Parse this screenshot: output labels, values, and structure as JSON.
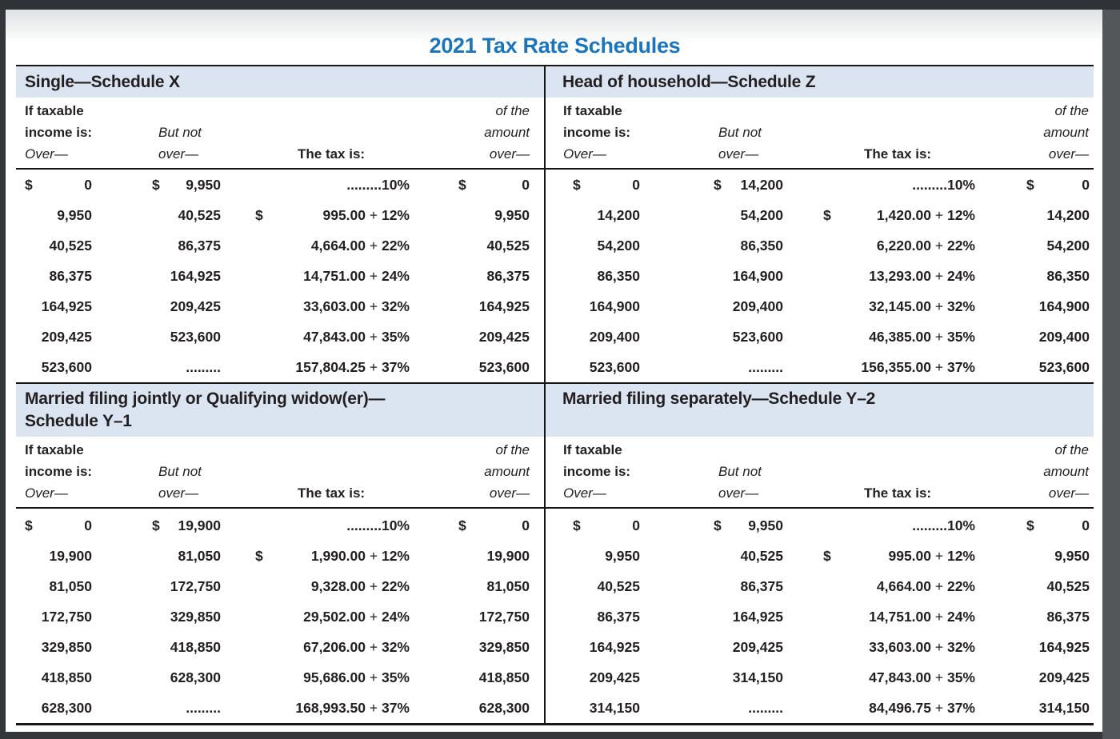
{
  "title": "2021 Tax Rate Schedules",
  "colors": {
    "accent_blue": "#1b75bc",
    "band_blue": "#dbe5f2"
  },
  "col_headers": {
    "if_taxable": "If taxable",
    "income_is": "income is:",
    "over_dash": "Over—",
    "but_not": "But not",
    "over_dash2": "over—",
    "the_tax_is": "The tax is:",
    "of_the": "of the",
    "amount": "amount",
    "over_dash3": "over—"
  },
  "schedules": [
    {
      "id": "single",
      "title": "Single—Schedule X",
      "title2": "",
      "rows": [
        {
          "s1": "$",
          "v1": "0",
          "s2": "$",
          "v2": "9,950",
          "s3": "",
          "t1": ".........",
          "sep": "",
          "t2": "10%",
          "s4": "$",
          "v4": "0"
        },
        {
          "s1": "",
          "v1": "9,950",
          "s2": "",
          "v2": "40,525",
          "s3": "$",
          "t1": "995.00",
          "sep": " + ",
          "t2": "12%",
          "s4": "",
          "v4": "9,950"
        },
        {
          "s1": "",
          "v1": "40,525",
          "s2": "",
          "v2": "86,375",
          "s3": "",
          "t1": "4,664.00",
          "sep": " + ",
          "t2": "22%",
          "s4": "",
          "v4": "40,525"
        },
        {
          "s1": "",
          "v1": "86,375",
          "s2": "",
          "v2": "164,925",
          "s3": "",
          "t1": "14,751.00",
          "sep": " + ",
          "t2": "24%",
          "s4": "",
          "v4": "86,375"
        },
        {
          "s1": "",
          "v1": "164,925",
          "s2": "",
          "v2": "209,425",
          "s3": "",
          "t1": "33,603.00",
          "sep": " + ",
          "t2": "32%",
          "s4": "",
          "v4": "164,925"
        },
        {
          "s1": "",
          "v1": "209,425",
          "s2": "",
          "v2": "523,600",
          "s3": "",
          "t1": "47,843.00",
          "sep": " + ",
          "t2": "35%",
          "s4": "",
          "v4": "209,425"
        },
        {
          "s1": "",
          "v1": "523,600",
          "s2": "",
          "v2": ".........",
          "s3": "",
          "t1": "157,804.25",
          "sep": " + ",
          "t2": "37%",
          "s4": "",
          "v4": "523,600"
        }
      ]
    },
    {
      "id": "head-of-household",
      "title": "Head of household—Schedule Z",
      "title2": "",
      "rows": [
        {
          "s1": "$",
          "v1": "0",
          "s2": "$",
          "v2": "14,200",
          "s3": "",
          "t1": ".........",
          "sep": "",
          "t2": "10%",
          "s4": "$",
          "v4": "0"
        },
        {
          "s1": "",
          "v1": "14,200",
          "s2": "",
          "v2": "54,200",
          "s3": "$",
          "t1": "1,420.00",
          "sep": " + ",
          "t2": "12%",
          "s4": "",
          "v4": "14,200"
        },
        {
          "s1": "",
          "v1": "54,200",
          "s2": "",
          "v2": "86,350",
          "s3": "",
          "t1": "6,220.00",
          "sep": " + ",
          "t2": "22%",
          "s4": "",
          "v4": "54,200"
        },
        {
          "s1": "",
          "v1": "86,350",
          "s2": "",
          "v2": "164,900",
          "s3": "",
          "t1": "13,293.00",
          "sep": " + ",
          "t2": "24%",
          "s4": "",
          "v4": "86,350"
        },
        {
          "s1": "",
          "v1": "164,900",
          "s2": "",
          "v2": "209,400",
          "s3": "",
          "t1": "32,145.00",
          "sep": " + ",
          "t2": "32%",
          "s4": "",
          "v4": "164,900"
        },
        {
          "s1": "",
          "v1": "209,400",
          "s2": "",
          "v2": "523,600",
          "s3": "",
          "t1": "46,385.00",
          "sep": " + ",
          "t2": "35%",
          "s4": "",
          "v4": "209,400"
        },
        {
          "s1": "",
          "v1": "523,600",
          "s2": "",
          "v2": ".........",
          "s3": "",
          "t1": "156,355.00",
          "sep": " + ",
          "t2": "37%",
          "s4": "",
          "v4": "523,600"
        }
      ]
    },
    {
      "id": "married-filing-jointly",
      "title": "Married filing jointly or Qualifying widow(er)—",
      "title2": "Schedule Y–1",
      "rows": [
        {
          "s1": "$",
          "v1": "0",
          "s2": "$",
          "v2": "19,900",
          "s3": "",
          "t1": ".........",
          "sep": "",
          "t2": "10%",
          "s4": "$",
          "v4": "0"
        },
        {
          "s1": "",
          "v1": "19,900",
          "s2": "",
          "v2": "81,050",
          "s3": "$",
          "t1": "1,990.00",
          "sep": " + ",
          "t2": "12%",
          "s4": "",
          "v4": "19,900"
        },
        {
          "s1": "",
          "v1": "81,050",
          "s2": "",
          "v2": "172,750",
          "s3": "",
          "t1": "9,328.00",
          "sep": " + ",
          "t2": "22%",
          "s4": "",
          "v4": "81,050"
        },
        {
          "s1": "",
          "v1": "172,750",
          "s2": "",
          "v2": "329,850",
          "s3": "",
          "t1": "29,502.00",
          "sep": " + ",
          "t2": "24%",
          "s4": "",
          "v4": "172,750"
        },
        {
          "s1": "",
          "v1": "329,850",
          "s2": "",
          "v2": "418,850",
          "s3": "",
          "t1": "67,206.00",
          "sep": " + ",
          "t2": "32%",
          "s4": "",
          "v4": "329,850"
        },
        {
          "s1": "",
          "v1": "418,850",
          "s2": "",
          "v2": "628,300",
          "s3": "",
          "t1": "95,686.00",
          "sep": " + ",
          "t2": "35%",
          "s4": "",
          "v4": "418,850"
        },
        {
          "s1": "",
          "v1": "628,300",
          "s2": "",
          "v2": ".........",
          "s3": "",
          "t1": "168,993.50",
          "sep": " + ",
          "t2": "37%",
          "s4": "",
          "v4": "628,300"
        }
      ]
    },
    {
      "id": "married-filing-separately",
      "title": "Married filing separately—Schedule Y–2",
      "title2": "",
      "rows": [
        {
          "s1": "$",
          "v1": "0",
          "s2": "$",
          "v2": "9,950",
          "s3": "",
          "t1": ".........",
          "sep": "",
          "t2": "10%",
          "s4": "$",
          "v4": "0"
        },
        {
          "s1": "",
          "v1": "9,950",
          "s2": "",
          "v2": "40,525",
          "s3": "$",
          "t1": "995.00",
          "sep": " + ",
          "t2": "12%",
          "s4": "",
          "v4": "9,950"
        },
        {
          "s1": "",
          "v1": "40,525",
          "s2": "",
          "v2": "86,375",
          "s3": "",
          "t1": "4,664.00",
          "sep": " + ",
          "t2": "22%",
          "s4": "",
          "v4": "40,525"
        },
        {
          "s1": "",
          "v1": "86,375",
          "s2": "",
          "v2": "164,925",
          "s3": "",
          "t1": "14,751.00",
          "sep": " + ",
          "t2": "24%",
          "s4": "",
          "v4": "86,375"
        },
        {
          "s1": "",
          "v1": "164,925",
          "s2": "",
          "v2": "209,425",
          "s3": "",
          "t1": "33,603.00",
          "sep": " + ",
          "t2": "32%",
          "s4": "",
          "v4": "164,925"
        },
        {
          "s1": "",
          "v1": "209,425",
          "s2": "",
          "v2": "314,150",
          "s3": "",
          "t1": "47,843.00",
          "sep": " + ",
          "t2": "35%",
          "s4": "",
          "v4": "209,425"
        },
        {
          "s1": "",
          "v1": "314,150",
          "s2": "",
          "v2": ".........",
          "s3": "",
          "t1": "84,496.75",
          "sep": " + ",
          "t2": "37%",
          "s4": "",
          "v4": "314,150"
        }
      ]
    }
  ]
}
